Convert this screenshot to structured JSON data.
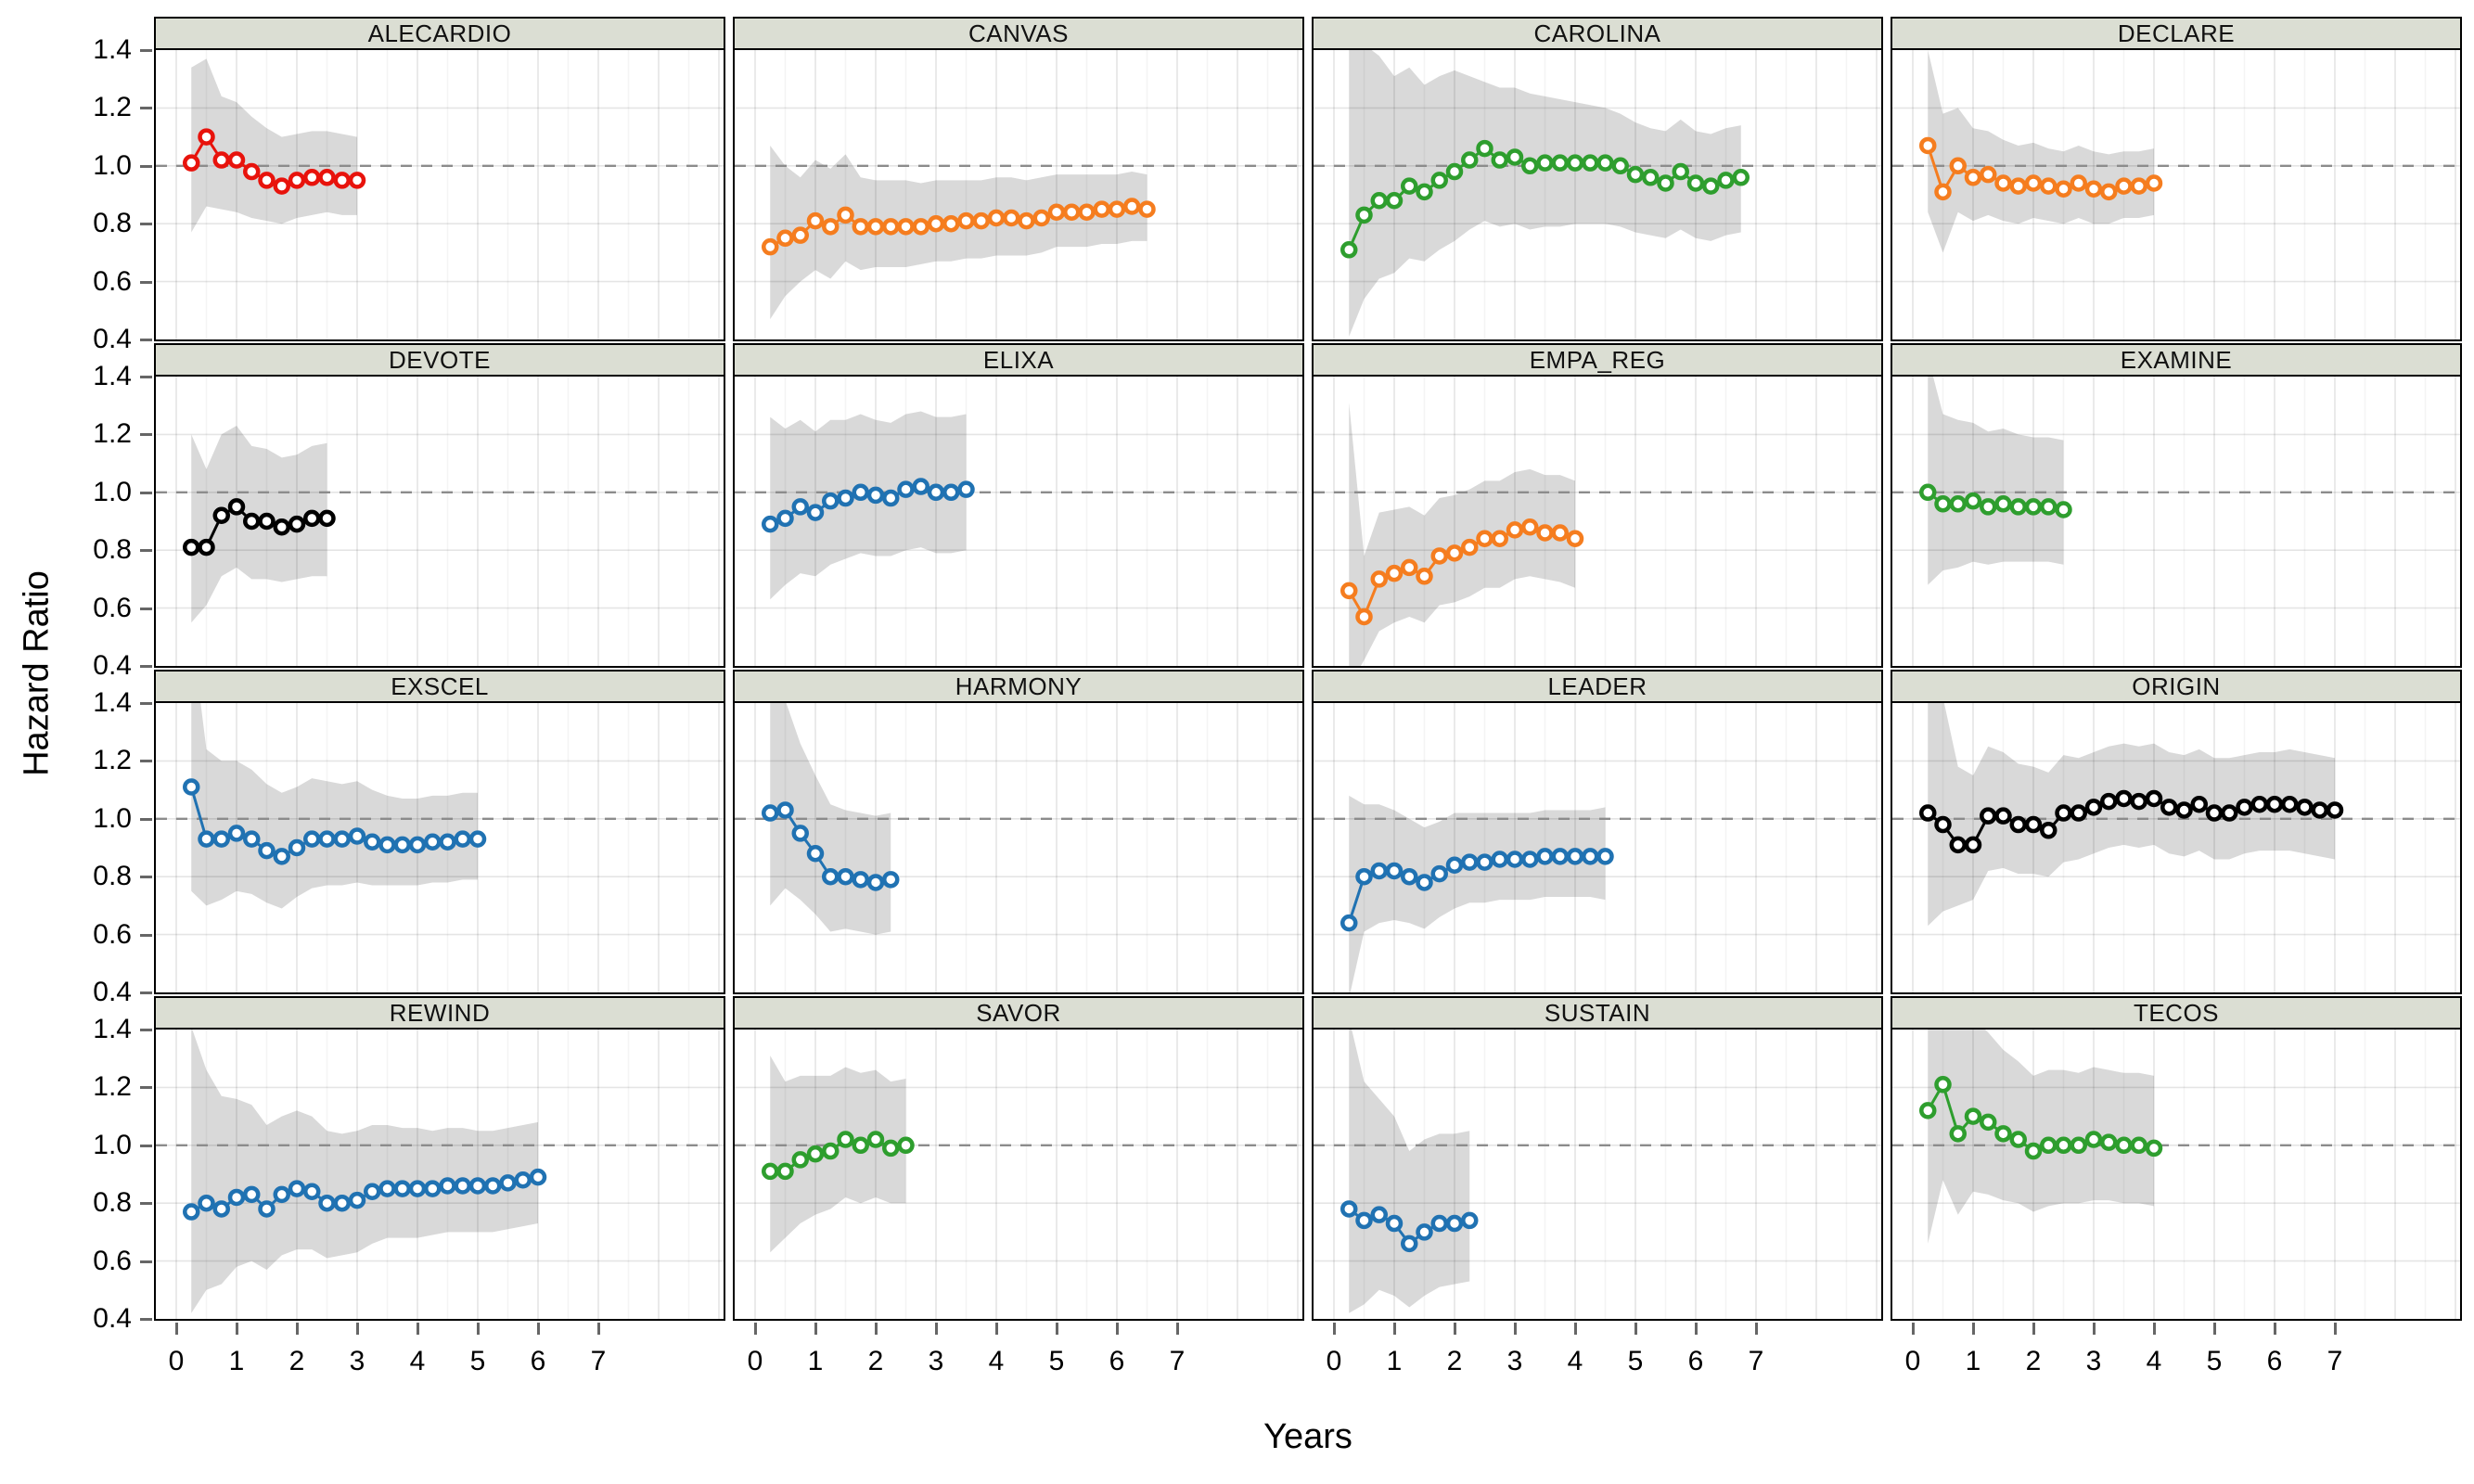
{
  "figure": {
    "ylabel": "Hazard Ratio",
    "xlabel": "Years"
  },
  "axes": {
    "y_ticks": [
      "1.4",
      "1.2",
      "1.0",
      "0.8",
      "0.6",
      "0.4"
    ],
    "x_ticks": [
      "0",
      "1",
      "2",
      "3",
      "4",
      "5",
      "6",
      "7"
    ],
    "ylim": [
      0.4,
      1.4
    ],
    "xlim": [
      -0.35,
      9.0
    ],
    "reference_line": 1.0,
    "grid": "on",
    "legend": "none"
  },
  "colors": {
    "red": "#e8130c",
    "orange": "#f57d1f",
    "green": "#2e9e2e",
    "blue": "#2072b2",
    "black": "#000000",
    "band": "#d9d9d9",
    "strip_bg": "#dbded3",
    "reference": "#8c8c8c"
  },
  "chart_data": [
    {
      "type": "line",
      "title": "ALECARDIO",
      "color": "red",
      "x": [
        0.25,
        0.5,
        0.75,
        1,
        1.25,
        1.5,
        1.75,
        2,
        2.25,
        2.5,
        2.75,
        3
      ],
      "y": [
        1.01,
        1.1,
        1.02,
        1.02,
        0.98,
        0.95,
        0.93,
        0.95,
        0.96,
        0.96,
        0.95,
        0.95
      ],
      "band_lo": [
        0.77,
        0.86,
        0.85,
        0.84,
        0.82,
        0.81,
        0.8,
        0.82,
        0.83,
        0.84,
        0.83,
        0.83
      ],
      "band_hi": [
        1.34,
        1.37,
        1.24,
        1.22,
        1.17,
        1.13,
        1.1,
        1.11,
        1.12,
        1.12,
        1.11,
        1.1
      ]
    },
    {
      "type": "line",
      "title": "CANVAS",
      "color": "orange",
      "x": [
        0.25,
        0.5,
        0.75,
        1,
        1.25,
        1.5,
        1.75,
        2,
        2.25,
        2.5,
        2.75,
        3,
        3.25,
        3.5,
        3.75,
        4,
        4.25,
        4.5,
        4.75,
        5,
        5.25,
        5.5,
        5.75,
        6,
        6.25,
        6.5
      ],
      "y": [
        0.72,
        0.75,
        0.76,
        0.81,
        0.79,
        0.83,
        0.79,
        0.79,
        0.79,
        0.79,
        0.79,
        0.8,
        0.8,
        0.81,
        0.81,
        0.82,
        0.82,
        0.81,
        0.82,
        0.84,
        0.84,
        0.84,
        0.85,
        0.85,
        0.86,
        0.85
      ],
      "band_lo": [
        0.47,
        0.55,
        0.6,
        0.64,
        0.61,
        0.67,
        0.64,
        0.65,
        0.65,
        0.65,
        0.66,
        0.67,
        0.67,
        0.68,
        0.68,
        0.69,
        0.69,
        0.69,
        0.7,
        0.72,
        0.72,
        0.72,
        0.73,
        0.73,
        0.74,
        0.74
      ],
      "band_hi": [
        1.07,
        1.0,
        0.96,
        1.02,
        0.99,
        1.04,
        0.96,
        0.95,
        0.95,
        0.95,
        0.94,
        0.95,
        0.95,
        0.95,
        0.95,
        0.96,
        0.96,
        0.95,
        0.96,
        0.97,
        0.97,
        0.97,
        0.97,
        0.97,
        0.98,
        0.97
      ]
    },
    {
      "type": "line",
      "title": "CAROLINA",
      "color": "green",
      "x": [
        0.25,
        0.5,
        0.75,
        1,
        1.25,
        1.5,
        1.75,
        2,
        2.25,
        2.5,
        2.75,
        3,
        3.25,
        3.5,
        3.75,
        4,
        4.25,
        4.5,
        4.75,
        5,
        5.25,
        5.5,
        5.75,
        6,
        6.25,
        6.5,
        6.75
      ],
      "y": [
        0.71,
        0.83,
        0.88,
        0.88,
        0.93,
        0.91,
        0.95,
        0.98,
        1.02,
        1.06,
        1.02,
        1.03,
        1.0,
        1.01,
        1.01,
        1.01,
        1.01,
        1.01,
        1.0,
        0.97,
        0.96,
        0.94,
        0.98,
        0.94,
        0.93,
        0.95,
        0.96
      ],
      "band_lo": [
        0.41,
        0.54,
        0.61,
        0.63,
        0.68,
        0.67,
        0.71,
        0.74,
        0.78,
        0.81,
        0.79,
        0.8,
        0.78,
        0.79,
        0.79,
        0.8,
        0.8,
        0.8,
        0.79,
        0.77,
        0.76,
        0.75,
        0.78,
        0.75,
        0.74,
        0.76,
        0.77
      ],
      "band_hi": [
        1.4,
        1.42,
        1.38,
        1.31,
        1.34,
        1.28,
        1.31,
        1.33,
        1.31,
        1.29,
        1.27,
        1.27,
        1.25,
        1.24,
        1.23,
        1.22,
        1.21,
        1.2,
        1.18,
        1.15,
        1.13,
        1.12,
        1.16,
        1.12,
        1.11,
        1.13,
        1.14
      ]
    },
    {
      "type": "line",
      "title": "DECLARE",
      "color": "orange",
      "x": [
        0.25,
        0.5,
        0.75,
        1,
        1.25,
        1.5,
        1.75,
        2,
        2.25,
        2.5,
        2.75,
        3,
        3.25,
        3.5,
        3.75,
        4
      ],
      "y": [
        1.07,
        0.91,
        1.0,
        0.96,
        0.97,
        0.94,
        0.93,
        0.94,
        0.93,
        0.92,
        0.94,
        0.92,
        0.91,
        0.93,
        0.93,
        0.94
      ],
      "band_lo": [
        0.84,
        0.7,
        0.84,
        0.81,
        0.83,
        0.81,
        0.8,
        0.82,
        0.81,
        0.8,
        0.82,
        0.8,
        0.8,
        0.82,
        0.82,
        0.83
      ],
      "band_hi": [
        1.4,
        1.18,
        1.2,
        1.13,
        1.12,
        1.09,
        1.07,
        1.08,
        1.06,
        1.05,
        1.07,
        1.05,
        1.04,
        1.05,
        1.05,
        1.06
      ]
    },
    {
      "type": "line",
      "title": "DEVOTE",
      "color": "black",
      "x": [
        0.25,
        0.5,
        0.75,
        1,
        1.25,
        1.5,
        1.75,
        2,
        2.25,
        2.5
      ],
      "y": [
        0.81,
        0.81,
        0.92,
        0.95,
        0.9,
        0.9,
        0.88,
        0.89,
        0.91,
        0.91
      ],
      "band_lo": [
        0.55,
        0.61,
        0.71,
        0.74,
        0.7,
        0.7,
        0.69,
        0.7,
        0.71,
        0.71
      ],
      "band_hi": [
        1.2,
        1.08,
        1.2,
        1.23,
        1.16,
        1.15,
        1.12,
        1.13,
        1.16,
        1.17
      ]
    },
    {
      "type": "line",
      "title": "ELIXA",
      "color": "blue",
      "x": [
        0.25,
        0.5,
        0.75,
        1,
        1.25,
        1.5,
        1.75,
        2,
        2.25,
        2.5,
        2.75,
        3,
        3.25,
        3.5
      ],
      "y": [
        0.89,
        0.91,
        0.95,
        0.93,
        0.97,
        0.98,
        1.0,
        0.99,
        0.98,
        1.01,
        1.02,
        1.0,
        1.0,
        1.01
      ],
      "band_lo": [
        0.63,
        0.68,
        0.72,
        0.71,
        0.75,
        0.77,
        0.79,
        0.78,
        0.78,
        0.8,
        0.81,
        0.79,
        0.79,
        0.8
      ],
      "band_hi": [
        1.26,
        1.22,
        1.25,
        1.21,
        1.25,
        1.25,
        1.27,
        1.25,
        1.24,
        1.27,
        1.28,
        1.26,
        1.26,
        1.27
      ]
    },
    {
      "type": "line",
      "title": "EMPA_REG",
      "color": "orange",
      "x": [
        0.25,
        0.5,
        0.75,
        1,
        1.25,
        1.5,
        1.75,
        2,
        2.25,
        2.5,
        2.75,
        3,
        3.25,
        3.5,
        3.75,
        4
      ],
      "y": [
        0.66,
        0.57,
        0.7,
        0.72,
        0.74,
        0.71,
        0.78,
        0.79,
        0.81,
        0.84,
        0.84,
        0.87,
        0.88,
        0.86,
        0.86,
        0.84
      ],
      "band_lo": [
        0.33,
        0.42,
        0.52,
        0.55,
        0.57,
        0.55,
        0.61,
        0.62,
        0.64,
        0.67,
        0.67,
        0.7,
        0.71,
        0.7,
        0.69,
        0.67
      ],
      "band_hi": [
        1.31,
        0.78,
        0.93,
        0.94,
        0.95,
        0.92,
        0.98,
        0.99,
        1.01,
        1.04,
        1.04,
        1.07,
        1.08,
        1.06,
        1.06,
        1.04
      ]
    },
    {
      "type": "line",
      "title": "EXAMINE",
      "color": "green",
      "x": [
        0.25,
        0.5,
        0.75,
        1,
        1.25,
        1.5,
        1.75,
        2,
        2.25,
        2.5
      ],
      "y": [
        1.0,
        0.96,
        0.96,
        0.97,
        0.95,
        0.96,
        0.95,
        0.95,
        0.95,
        0.94
      ],
      "band_lo": [
        0.68,
        0.73,
        0.74,
        0.76,
        0.75,
        0.76,
        0.76,
        0.76,
        0.76,
        0.75
      ],
      "band_hi": [
        1.47,
        1.27,
        1.25,
        1.24,
        1.21,
        1.22,
        1.2,
        1.19,
        1.19,
        1.18
      ]
    },
    {
      "type": "line",
      "title": "EXSCEL",
      "color": "blue",
      "x": [
        0.25,
        0.5,
        0.75,
        1,
        1.25,
        1.5,
        1.75,
        2,
        2.25,
        2.5,
        2.75,
        3,
        3.25,
        3.5,
        3.75,
        4,
        4.25,
        4.5,
        4.75,
        5
      ],
      "y": [
        1.11,
        0.93,
        0.93,
        0.95,
        0.93,
        0.89,
        0.87,
        0.9,
        0.93,
        0.93,
        0.93,
        0.94,
        0.92,
        0.91,
        0.91,
        0.91,
        0.92,
        0.92,
        0.93,
        0.93
      ],
      "band_lo": [
        0.75,
        0.7,
        0.72,
        0.75,
        0.74,
        0.71,
        0.69,
        0.73,
        0.76,
        0.77,
        0.77,
        0.78,
        0.77,
        0.77,
        0.77,
        0.77,
        0.78,
        0.78,
        0.79,
        0.79
      ],
      "band_hi": [
        1.66,
        1.24,
        1.2,
        1.2,
        1.17,
        1.12,
        1.09,
        1.11,
        1.14,
        1.13,
        1.12,
        1.13,
        1.1,
        1.08,
        1.07,
        1.07,
        1.08,
        1.08,
        1.09,
        1.09
      ]
    },
    {
      "type": "line",
      "title": "HARMONY",
      "color": "blue",
      "x": [
        0.25,
        0.5,
        0.75,
        1,
        1.25,
        1.5,
        1.75,
        2,
        2.25
      ],
      "y": [
        1.02,
        1.03,
        0.95,
        0.88,
        0.8,
        0.8,
        0.79,
        0.78,
        0.79
      ],
      "band_lo": [
        0.7,
        0.76,
        0.72,
        0.67,
        0.61,
        0.62,
        0.61,
        0.6,
        0.61
      ],
      "band_hi": [
        1.5,
        1.41,
        1.26,
        1.15,
        1.05,
        1.03,
        1.02,
        1.01,
        1.02
      ]
    },
    {
      "type": "line",
      "title": "LEADER",
      "color": "blue",
      "x": [
        0.25,
        0.5,
        0.75,
        1,
        1.25,
        1.5,
        1.75,
        2,
        2.25,
        2.5,
        2.75,
        3,
        3.25,
        3.5,
        3.75,
        4,
        4.25,
        4.5
      ],
      "y": [
        0.64,
        0.8,
        0.82,
        0.82,
        0.8,
        0.78,
        0.81,
        0.84,
        0.85,
        0.85,
        0.86,
        0.86,
        0.86,
        0.87,
        0.87,
        0.87,
        0.87,
        0.87
      ],
      "band_lo": [
        0.38,
        0.61,
        0.64,
        0.65,
        0.64,
        0.62,
        0.66,
        0.69,
        0.71,
        0.71,
        0.72,
        0.72,
        0.72,
        0.73,
        0.73,
        0.73,
        0.73,
        0.72
      ],
      "band_hi": [
        1.08,
        1.05,
        1.05,
        1.03,
        1.0,
        0.97,
        0.99,
        1.02,
        1.02,
        1.02,
        1.02,
        1.02,
        1.02,
        1.03,
        1.03,
        1.03,
        1.03,
        1.04
      ]
    },
    {
      "type": "line",
      "title": "ORIGIN",
      "color": "black",
      "x": [
        0.25,
        0.5,
        0.75,
        1,
        1.25,
        1.5,
        1.75,
        2,
        2.25,
        2.5,
        2.75,
        3,
        3.25,
        3.5,
        3.75,
        4,
        4.25,
        4.5,
        4.75,
        5,
        5.25,
        5.5,
        5.75,
        6,
        6.25,
        6.5,
        6.75,
        7
      ],
      "y": [
        1.02,
        0.98,
        0.91,
        0.91,
        1.01,
        1.01,
        0.98,
        0.98,
        0.96,
        1.02,
        1.02,
        1.04,
        1.06,
        1.07,
        1.06,
        1.07,
        1.04,
        1.03,
        1.05,
        1.02,
        1.02,
        1.04,
        1.05,
        1.05,
        1.05,
        1.04,
        1.03,
        1.03
      ],
      "band_lo": [
        0.63,
        0.68,
        0.7,
        0.72,
        0.82,
        0.83,
        0.81,
        0.81,
        0.8,
        0.85,
        0.86,
        0.88,
        0.9,
        0.91,
        0.9,
        0.91,
        0.88,
        0.87,
        0.89,
        0.86,
        0.86,
        0.88,
        0.89,
        0.89,
        0.89,
        0.88,
        0.87,
        0.86
      ],
      "band_hi": [
        1.66,
        1.42,
        1.18,
        1.15,
        1.25,
        1.23,
        1.19,
        1.18,
        1.16,
        1.22,
        1.21,
        1.23,
        1.25,
        1.26,
        1.25,
        1.26,
        1.23,
        1.22,
        1.24,
        1.21,
        1.21,
        1.22,
        1.23,
        1.23,
        1.24,
        1.23,
        1.22,
        1.21
      ]
    },
    {
      "type": "line",
      "title": "REWIND",
      "color": "blue",
      "x": [
        0.25,
        0.5,
        0.75,
        1,
        1.25,
        1.5,
        1.75,
        2,
        2.25,
        2.5,
        2.75,
        3,
        3.25,
        3.5,
        3.75,
        4,
        4.25,
        4.5,
        4.75,
        5,
        5.25,
        5.5,
        5.75,
        6
      ],
      "y": [
        0.77,
        0.8,
        0.78,
        0.82,
        0.83,
        0.78,
        0.83,
        0.85,
        0.84,
        0.8,
        0.8,
        0.81,
        0.84,
        0.85,
        0.85,
        0.85,
        0.85,
        0.86,
        0.86,
        0.86,
        0.86,
        0.87,
        0.88,
        0.89
      ],
      "band_lo": [
        0.42,
        0.5,
        0.52,
        0.58,
        0.6,
        0.57,
        0.62,
        0.64,
        0.64,
        0.61,
        0.62,
        0.63,
        0.66,
        0.68,
        0.68,
        0.68,
        0.69,
        0.7,
        0.7,
        0.7,
        0.7,
        0.71,
        0.72,
        0.73
      ],
      "band_hi": [
        1.41,
        1.26,
        1.17,
        1.16,
        1.14,
        1.07,
        1.1,
        1.12,
        1.1,
        1.05,
        1.04,
        1.05,
        1.07,
        1.07,
        1.06,
        1.06,
        1.05,
        1.06,
        1.06,
        1.05,
        1.05,
        1.06,
        1.07,
        1.08
      ]
    },
    {
      "type": "line",
      "title": "SAVOR",
      "color": "green",
      "x": [
        0.25,
        0.5,
        0.75,
        1,
        1.25,
        1.5,
        1.75,
        2,
        2.25,
        2.5
      ],
      "y": [
        0.91,
        0.91,
        0.95,
        0.97,
        0.98,
        1.02,
        1.0,
        1.02,
        0.99,
        1.0
      ],
      "band_lo": [
        0.63,
        0.68,
        0.73,
        0.76,
        0.78,
        0.82,
        0.8,
        0.82,
        0.8,
        0.8
      ],
      "band_hi": [
        1.31,
        1.22,
        1.24,
        1.24,
        1.24,
        1.27,
        1.25,
        1.26,
        1.22,
        1.23
      ]
    },
    {
      "type": "line",
      "title": "SUSTAIN",
      "color": "blue",
      "x": [
        0.25,
        0.5,
        0.75,
        1,
        1.25,
        1.5,
        1.75,
        2,
        2.25
      ],
      "y": [
        0.78,
        0.74,
        0.76,
        0.73,
        0.66,
        0.7,
        0.73,
        0.73,
        0.74
      ],
      "band_lo": [
        0.42,
        0.45,
        0.5,
        0.48,
        0.44,
        0.48,
        0.51,
        0.52,
        0.53
      ],
      "band_hi": [
        1.44,
        1.22,
        1.16,
        1.1,
        0.98,
        1.02,
        1.04,
        1.04,
        1.05
      ]
    },
    {
      "type": "line",
      "title": "TECOS",
      "color": "green",
      "x": [
        0.25,
        0.5,
        0.75,
        1,
        1.25,
        1.5,
        1.75,
        2,
        2.25,
        2.5,
        2.75,
        3,
        3.25,
        3.5,
        3.75,
        4
      ],
      "y": [
        1.12,
        1.21,
        1.04,
        1.1,
        1.08,
        1.04,
        1.02,
        0.98,
        1.0,
        1.0,
        1.0,
        1.02,
        1.01,
        1.0,
        1.0,
        0.99
      ],
      "band_lo": [
        0.66,
        0.88,
        0.76,
        0.84,
        0.83,
        0.81,
        0.8,
        0.77,
        0.79,
        0.8,
        0.8,
        0.81,
        0.81,
        0.8,
        0.8,
        0.79
      ],
      "band_hi": [
        1.8,
        1.66,
        1.43,
        1.44,
        1.39,
        1.33,
        1.29,
        1.24,
        1.26,
        1.26,
        1.25,
        1.27,
        1.26,
        1.25,
        1.25,
        1.24
      ]
    }
  ]
}
